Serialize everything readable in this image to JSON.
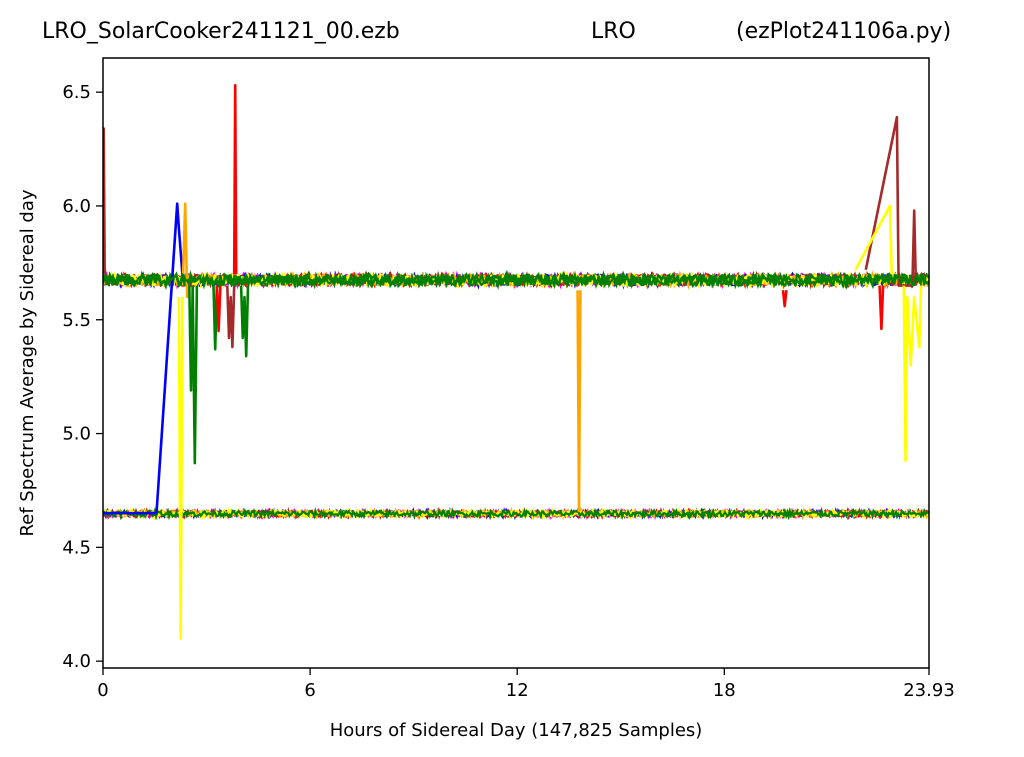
{
  "header": {
    "left": "LRO_SolarCooker241121_00.ezb",
    "center": "LRO",
    "right": "(ezPlot241106a.py)"
  },
  "chart_data": {
    "type": "line",
    "title": "LRO_SolarCooker241121_00.ezb",
    "xlabel": "Hours of Sidereal Day  (147,825 Samples)",
    "ylabel": "Ref Spectrum Average by Sidereal day",
    "xlim": [
      0,
      23.93
    ],
    "ylim": [
      3.97,
      6.65
    ],
    "xticks": [
      0,
      6,
      12,
      18,
      23.93
    ],
    "xtick_labels": [
      "0",
      "6",
      "12",
      "18",
      "23.93"
    ],
    "yticks": [
      4.0,
      4.5,
      5.0,
      5.5,
      6.0,
      6.5
    ],
    "ytick_labels": [
      "4.0",
      "4.5",
      "5.0",
      "5.5",
      "6.0",
      "6.5"
    ],
    "grid": false,
    "series_colors": [
      "#ff00ff",
      "#0000ff",
      "#ff0000",
      "#a52a2a",
      "#ffa500",
      "#ffff00",
      "#008000"
    ],
    "upper_band": {
      "center": 5.675,
      "noise": 0.025,
      "x_range": [
        0,
        23.93
      ]
    },
    "lower_band": {
      "center": 4.648,
      "noise": 0.012,
      "x_range": [
        0,
        23.93
      ]
    },
    "features": [
      {
        "color": "#0000ff",
        "x": [
          0,
          1.55,
          2.15,
          2.2,
          2.3
        ],
        "y": [
          4.65,
          4.65,
          6.01,
          5.9,
          5.7
        ]
      },
      {
        "color": "#ffa500",
        "x": [
          2.32,
          2.38,
          2.44,
          2.5
        ],
        "y": [
          5.7,
          6.01,
          5.6,
          5.65
        ]
      },
      {
        "color": "#ffa500",
        "x": [
          13.75,
          13.79,
          13.83
        ],
        "y": [
          5.63,
          4.66,
          5.63
        ]
      },
      {
        "color": "#ffff00",
        "x": [
          2.2,
          2.25,
          2.3
        ],
        "y": [
          5.6,
          4.1,
          5.6
        ]
      },
      {
        "color": "#ff0000",
        "x": [
          3.8,
          3.83,
          3.86
        ],
        "y": [
          5.7,
          6.53,
          5.7
        ]
      },
      {
        "color": "#a52a2a",
        "x": [
          0,
          0.02,
          0.05
        ],
        "y": [
          5.7,
          6.34,
          5.7
        ]
      },
      {
        "color": "#a52a2a",
        "x": [
          22.1,
          23.0,
          23.05,
          23.45,
          23.5,
          23.55
        ],
        "y": [
          5.72,
          6.39,
          5.65,
          5.65,
          5.98,
          5.65
        ]
      },
      {
        "color": "#ffff00",
        "x": [
          21.8,
          22.8,
          22.85
        ],
        "y": [
          5.72,
          6.0,
          5.7
        ]
      },
      {
        "color": "#ffff00",
        "x": [
          23.2,
          23.25,
          23.3,
          23.4,
          23.5,
          23.65,
          23.7
        ],
        "y": [
          5.65,
          4.88,
          5.6,
          5.3,
          5.6,
          5.38,
          5.65
        ]
      },
      {
        "color": "#ff0000",
        "x": [
          22.5,
          22.55,
          22.6
        ],
        "y": [
          5.65,
          5.46,
          5.65
        ]
      },
      {
        "color": "#a52a2a",
        "x": [
          3.6,
          3.65,
          3.7,
          3.75,
          3.8
        ],
        "y": [
          5.65,
          5.42,
          5.6,
          5.38,
          5.65
        ]
      },
      {
        "color": "#008000",
        "x": [
          2.6,
          2.66,
          2.72
        ],
        "y": [
          5.65,
          4.87,
          5.65
        ]
      },
      {
        "color": "#008000",
        "x": [
          2.5,
          2.55,
          2.6
        ],
        "y": [
          5.65,
          5.19,
          5.65
        ]
      },
      {
        "color": "#008000",
        "x": [
          3.2,
          3.25,
          3.3
        ],
        "y": [
          5.65,
          5.37,
          5.65
        ]
      },
      {
        "color": "#008000",
        "x": [
          4.0,
          4.05,
          4.1,
          4.15,
          4.2
        ],
        "y": [
          5.65,
          5.42,
          5.6,
          5.34,
          5.65
        ]
      },
      {
        "color": "#ff0000",
        "x": [
          3.3,
          3.35,
          3.4
        ],
        "y": [
          5.65,
          5.45,
          5.65
        ]
      },
      {
        "color": "#ff0000",
        "x": [
          19.7,
          19.75,
          19.8
        ],
        "y": [
          5.63,
          5.56,
          5.63
        ]
      }
    ]
  }
}
